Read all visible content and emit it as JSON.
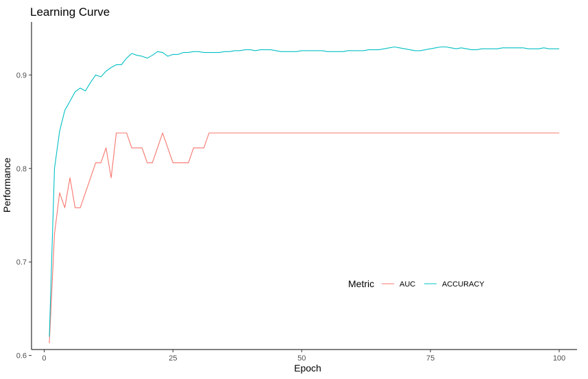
{
  "chart_data": {
    "type": "line",
    "title": "Learning Curve",
    "xlabel": "Epoch",
    "ylabel": "Performance",
    "xlim": [
      1,
      100
    ],
    "ylim": [
      0.61,
      0.945
    ],
    "x_ticks": [
      0,
      25,
      50,
      75,
      100
    ],
    "y_ticks": [
      0.6,
      0.7,
      0.8,
      0.9
    ],
    "grid": false,
    "legend": {
      "title": "Metric",
      "position": "bottom-right-inside"
    },
    "series": [
      {
        "name": "AUC",
        "color": "#F8766D",
        "x": [
          1,
          2,
          3,
          4,
          5,
          6,
          7,
          8,
          9,
          10,
          11,
          12,
          13,
          14,
          15,
          16,
          17,
          18,
          19,
          20,
          21,
          22,
          23,
          24,
          25,
          26,
          27,
          28,
          29,
          30,
          31,
          32,
          33,
          34,
          35,
          36,
          37,
          38,
          39,
          40,
          41,
          42,
          43,
          44,
          45,
          46,
          47,
          48,
          49,
          50,
          51,
          52,
          53,
          54,
          55,
          56,
          57,
          58,
          59,
          60,
          61,
          62,
          63,
          64,
          65,
          66,
          67,
          68,
          69,
          70,
          71,
          72,
          73,
          74,
          75,
          76,
          77,
          78,
          79,
          80,
          81,
          82,
          83,
          84,
          85,
          86,
          87,
          88,
          89,
          90,
          91,
          92,
          93,
          94,
          95,
          96,
          97,
          98,
          99,
          100
        ],
        "values": [
          0.613,
          0.73,
          0.774,
          0.758,
          0.79,
          0.758,
          0.758,
          0.774,
          0.79,
          0.806,
          0.806,
          0.822,
          0.79,
          0.838,
          0.838,
          0.838,
          0.822,
          0.822,
          0.822,
          0.806,
          0.806,
          0.822,
          0.838,
          0.822,
          0.806,
          0.806,
          0.806,
          0.806,
          0.822,
          0.822,
          0.822,
          0.838,
          0.838,
          0.838,
          0.838,
          0.838,
          0.838,
          0.838,
          0.838,
          0.838,
          0.838,
          0.838,
          0.838,
          0.838,
          0.838,
          0.838,
          0.838,
          0.838,
          0.838,
          0.838,
          0.838,
          0.838,
          0.838,
          0.838,
          0.838,
          0.838,
          0.838,
          0.838,
          0.838,
          0.838,
          0.838,
          0.838,
          0.838,
          0.838,
          0.838,
          0.838,
          0.838,
          0.838,
          0.838,
          0.838,
          0.838,
          0.838,
          0.838,
          0.838,
          0.838,
          0.838,
          0.838,
          0.838,
          0.838,
          0.838,
          0.838,
          0.838,
          0.838,
          0.838,
          0.838,
          0.838,
          0.838,
          0.838,
          0.838,
          0.838,
          0.838,
          0.838,
          0.838,
          0.838,
          0.838,
          0.838,
          0.838,
          0.838,
          0.838,
          0.838
        ]
      },
      {
        "name": "ACCURACY",
        "color": "#00BFC4",
        "x": [
          1,
          2,
          3,
          4,
          5,
          6,
          7,
          8,
          9,
          10,
          11,
          12,
          13,
          14,
          15,
          16,
          17,
          18,
          19,
          20,
          21,
          22,
          23,
          24,
          25,
          26,
          27,
          28,
          29,
          30,
          31,
          32,
          33,
          34,
          35,
          36,
          37,
          38,
          39,
          40,
          41,
          42,
          43,
          44,
          45,
          46,
          47,
          48,
          49,
          50,
          51,
          52,
          53,
          54,
          55,
          56,
          57,
          58,
          59,
          60,
          61,
          62,
          63,
          64,
          65,
          66,
          67,
          68,
          69,
          70,
          71,
          72,
          73,
          74,
          75,
          76,
          77,
          78,
          79,
          80,
          81,
          82,
          83,
          84,
          85,
          86,
          87,
          88,
          89,
          90,
          91,
          92,
          93,
          94,
          95,
          96,
          97,
          98,
          99,
          100
        ],
        "values": [
          0.62,
          0.8,
          0.84,
          0.862,
          0.872,
          0.882,
          0.886,
          0.883,
          0.892,
          0.9,
          0.898,
          0.904,
          0.908,
          0.911,
          0.911,
          0.918,
          0.923,
          0.921,
          0.92,
          0.918,
          0.921,
          0.925,
          0.924,
          0.92,
          0.922,
          0.922,
          0.924,
          0.924,
          0.925,
          0.925,
          0.924,
          0.924,
          0.924,
          0.924,
          0.925,
          0.925,
          0.926,
          0.926,
          0.927,
          0.927,
          0.926,
          0.927,
          0.927,
          0.927,
          0.926,
          0.925,
          0.925,
          0.925,
          0.925,
          0.926,
          0.926,
          0.926,
          0.926,
          0.926,
          0.925,
          0.925,
          0.925,
          0.925,
          0.926,
          0.926,
          0.926,
          0.926,
          0.927,
          0.927,
          0.927,
          0.928,
          0.929,
          0.93,
          0.929,
          0.928,
          0.927,
          0.926,
          0.926,
          0.927,
          0.928,
          0.929,
          0.93,
          0.93,
          0.929,
          0.928,
          0.929,
          0.928,
          0.927,
          0.927,
          0.928,
          0.928,
          0.928,
          0.928,
          0.929,
          0.929,
          0.929,
          0.929,
          0.929,
          0.928,
          0.928,
          0.928,
          0.929,
          0.928,
          0.928,
          0.928
        ]
      }
    ]
  }
}
